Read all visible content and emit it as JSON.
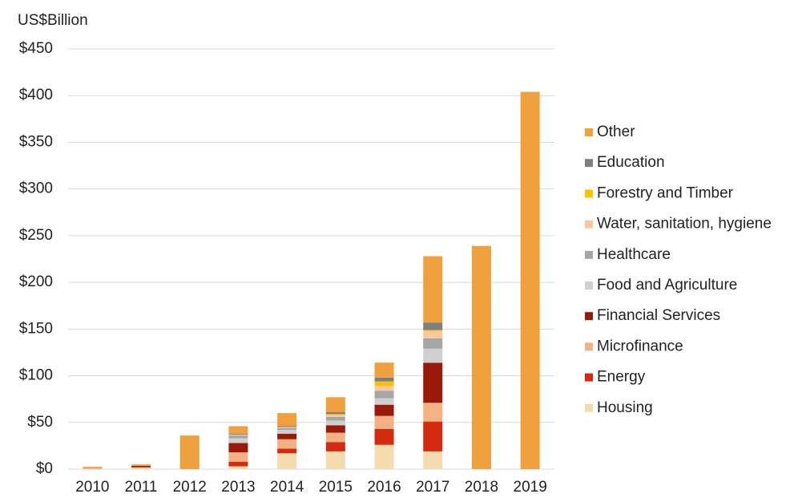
{
  "chart_data": {
    "type": "stacked_bar",
    "ylabel": "US$Billion",
    "categories": [
      "2010",
      "2011",
      "2012",
      "2013",
      "2014",
      "2015",
      "2016",
      "2017",
      "2018",
      "2019"
    ],
    "series": [
      {
        "name": "Housing",
        "color": "#f5dcae",
        "values": [
          0,
          1,
          0,
          3,
          17,
          19,
          26,
          19,
          0,
          0
        ]
      },
      {
        "name": "Energy",
        "color": "#d42a10",
        "values": [
          0,
          0,
          0,
          5,
          5,
          10,
          17,
          32,
          0,
          0
        ]
      },
      {
        "name": "Microfinance",
        "color": "#f4b183",
        "values": [
          1,
          1,
          0,
          10,
          10,
          10,
          14,
          20,
          0,
          0
        ]
      },
      {
        "name": "Financial Services",
        "color": "#9a1a0a",
        "values": [
          0,
          1.5,
          0,
          10,
          6,
          8,
          12,
          43,
          0,
          0
        ]
      },
      {
        "name": "Food and Agriculture",
        "color": "#d0d0d0",
        "values": [
          0,
          0,
          0,
          5,
          4,
          5,
          7,
          15,
          0,
          0
        ]
      },
      {
        "name": "Healthcare",
        "color": "#a6a6a6",
        "values": [
          0,
          0,
          0,
          3,
          2,
          4,
          8,
          11,
          0,
          0
        ]
      },
      {
        "name": "Water, sanitation, hygiene",
        "color": "#f9c8a0",
        "values": [
          0,
          0,
          0,
          1,
          1,
          2,
          5,
          8,
          0,
          0
        ]
      },
      {
        "name": "Forestry and Timber",
        "color": "#ffc000",
        "values": [
          0,
          0,
          0,
          0,
          0,
          1,
          5,
          1,
          0,
          0
        ]
      },
      {
        "name": "Education",
        "color": "#7f7f7f",
        "values": [
          0,
          0,
          0,
          1,
          1,
          2,
          4,
          8,
          0,
          0
        ]
      },
      {
        "name": "Other",
        "color": "#f0a03c",
        "values": [
          1.5,
          1.5,
          36,
          8,
          14,
          16,
          16,
          71,
          239,
          404
        ]
      }
    ],
    "ylim": [
      0,
      450
    ],
    "yticks": [
      {
        "value": 0,
        "label": "$0"
      },
      {
        "value": 50,
        "label": "$50"
      },
      {
        "value": 100,
        "label": "$100"
      },
      {
        "value": 150,
        "label": "$150"
      },
      {
        "value": 200,
        "label": "$200"
      },
      {
        "value": 250,
        "label": "$250"
      },
      {
        "value": 300,
        "label": "$300"
      },
      {
        "value": 350,
        "label": "$350"
      },
      {
        "value": 400,
        "label": "$400"
      },
      {
        "value": 450,
        "label": "$450"
      }
    ],
    "grid": true,
    "legend": "right"
  }
}
